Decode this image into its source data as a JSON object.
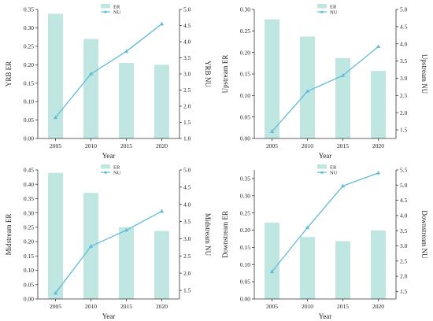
{
  "colors": {
    "bar": "#bfe6e0",
    "line": "#5dbcd8",
    "axis": "#333333",
    "text": "#222222"
  },
  "chart_data": [
    {
      "type": "bar+line",
      "categories": [
        "2005",
        "2010",
        "2015",
        "2020"
      ],
      "xlabel": "Year",
      "ylabel_left": "YRB ER",
      "ylabel_right": "YRB NU",
      "ylim_left": [
        0,
        0.35
      ],
      "yticks_left": [
        "0.00",
        "0.05",
        "0.10",
        "0.15",
        "0.20",
        "0.25",
        "0.30",
        "0.35"
      ],
      "ylim_right": [
        1.0,
        5.0
      ],
      "yticks_right": [
        "1.0",
        "1.5",
        "2.0",
        "2.5",
        "3.0",
        "3.5",
        "4.0",
        "4.5",
        "5.0"
      ],
      "legend": [
        "ER",
        "NU"
      ],
      "legend_position": "top-center",
      "series": [
        {
          "name": "ER",
          "type": "bar",
          "axis": "left",
          "values": [
            0.338,
            0.27,
            0.205,
            0.2
          ]
        },
        {
          "name": "NU",
          "type": "line",
          "axis": "right",
          "values": [
            1.65,
            3.0,
            3.7,
            4.55
          ]
        }
      ]
    },
    {
      "type": "bar+line",
      "categories": [
        "2005",
        "2010",
        "2015",
        "2020"
      ],
      "xlabel": "Year",
      "ylabel_left": "Upstream ER",
      "ylabel_right": "Upstream NU",
      "ylim_left": [
        0,
        0.3
      ],
      "yticks_left": [
        "0.00",
        "0.05",
        "0.10",
        "0.15",
        "0.20",
        "0.25",
        "0.30"
      ],
      "ylim_right": [
        1.25,
        5.0
      ],
      "yticks_right": [
        "1.5",
        "2.0",
        "2.5",
        "3.0",
        "3.5",
        "4.0",
        "4.5",
        "5.0"
      ],
      "legend": [
        "ER",
        "NU"
      ],
      "legend_position": "top-center",
      "series": [
        {
          "name": "ER",
          "type": "bar",
          "axis": "left",
          "values": [
            0.277,
            0.237,
            0.187,
            0.157
          ]
        },
        {
          "name": "NU",
          "type": "line",
          "axis": "right",
          "values": [
            1.45,
            2.62,
            3.08,
            3.92
          ]
        }
      ]
    },
    {
      "type": "bar+line",
      "categories": [
        "2005",
        "2010",
        "2015",
        "2020"
      ],
      "xlabel": "Year",
      "ylabel_left": "Midstream ER",
      "ylabel_right": "Midstream NU",
      "ylim_left": [
        0,
        0.45
      ],
      "yticks_left": [
        "0.00",
        "0.05",
        "0.10",
        "0.15",
        "0.20",
        "0.25",
        "0.30",
        "0.35",
        "0.40",
        "0.45"
      ],
      "ylim_right": [
        1.25,
        5.0
      ],
      "yticks_right": [
        "1.5",
        "2.0",
        "2.5",
        "3.0",
        "3.5",
        "4.0",
        "4.5",
        "5.0"
      ],
      "legend": [
        "ER",
        "NU"
      ],
      "legend_position": "top-center",
      "series": [
        {
          "name": "ER",
          "type": "bar",
          "axis": "left",
          "values": [
            0.44,
            0.37,
            0.25,
            0.237
          ]
        },
        {
          "name": "NU",
          "type": "line",
          "axis": "right",
          "values": [
            1.42,
            2.78,
            3.25,
            3.8
          ]
        }
      ]
    },
    {
      "type": "bar+line",
      "categories": [
        "2005",
        "2010",
        "2015",
        "2020"
      ],
      "xlabel": "Year",
      "ylabel_left": "Downstream ER",
      "ylabel_right": "Downstream NU",
      "ylim_left": [
        0,
        0.375
      ],
      "yticks_left": [
        "0.00",
        "0.05",
        "0.10",
        "0.15",
        "0.20",
        "0.25",
        "0.30",
        "0.35"
      ],
      "ylim_right": [
        1.25,
        5.5
      ],
      "yticks_right": [
        "1.5",
        "2.0",
        "2.5",
        "3.0",
        "3.5",
        "4.0",
        "4.5",
        "5.0",
        "5.5"
      ],
      "legend": [
        "ER",
        "NU"
      ],
      "legend_position": "top-center",
      "series": [
        {
          "name": "ER",
          "type": "bar",
          "axis": "left",
          "values": [
            0.222,
            0.18,
            0.168,
            0.199
          ]
        },
        {
          "name": "NU",
          "type": "line",
          "axis": "right",
          "values": [
            2.15,
            3.6,
            4.97,
            5.4
          ]
        }
      ]
    }
  ]
}
